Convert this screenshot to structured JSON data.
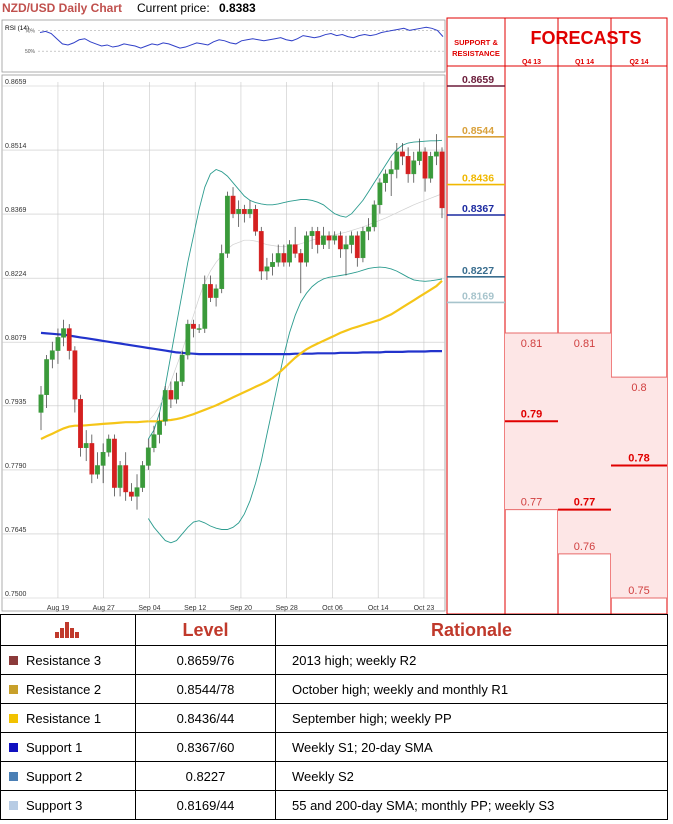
{
  "header": {
    "title": "NZD/USD Daily Chart",
    "price_label": "Current price:",
    "price_value": "0.8383"
  },
  "colors": {
    "bull": "#3a9a3a",
    "bear": "#d42020",
    "sma20": "#2c9c8f",
    "sma55": "#f5c518",
    "sma200": "#2233cc",
    "forecast_red": "#e00000",
    "forecast_fill": "#fde6e6",
    "table_header": "#c0392b"
  },
  "chart_data": [
    {
      "type": "line",
      "title": "RSI (14)",
      "yticks": [
        "70%",
        "50%"
      ],
      "ylim": [
        30,
        80
      ],
      "values": [
        68,
        69,
        67,
        62,
        57,
        56,
        58,
        61,
        62,
        59,
        57,
        55,
        56,
        54,
        55,
        57,
        56,
        55,
        53,
        55,
        57,
        56,
        58,
        57,
        55,
        53,
        54,
        56,
        58,
        57,
        56,
        59,
        61,
        60,
        58,
        57,
        60,
        61,
        62,
        61,
        60,
        61,
        62,
        63,
        61,
        60,
        62,
        65,
        64,
        63,
        64,
        66,
        67,
        65,
        66,
        64,
        63,
        65,
        66,
        65,
        66,
        68,
        69,
        70,
        71,
        72,
        70,
        71,
        72,
        73,
        72,
        70,
        64
      ]
    },
    {
      "type": "candlestick",
      "title": "NZD/USD Daily Chart",
      "ylim": [
        0.75,
        0.8659
      ],
      "yticks": [
        "0.8659",
        "0.8514",
        "0.8369",
        "0.8224",
        "0.8079",
        "0.7935",
        "0.7790",
        "0.7645",
        "0.7500"
      ],
      "xticks": [
        "Aug 19",
        "Aug 27",
        "Sep 04",
        "Sep 12",
        "Sep 20",
        "Sep 28",
        "Oct 06",
        "Oct 14",
        "Oct 23"
      ],
      "candles": [
        [
          0.792,
          0.798,
          0.788,
          0.796
        ],
        [
          0.796,
          0.805,
          0.793,
          0.804
        ],
        [
          0.804,
          0.808,
          0.802,
          0.806
        ],
        [
          0.806,
          0.811,
          0.803,
          0.809
        ],
        [
          0.809,
          0.813,
          0.807,
          0.811
        ],
        [
          0.811,
          0.812,
          0.804,
          0.806
        ],
        [
          0.806,
          0.807,
          0.792,
          0.795
        ],
        [
          0.795,
          0.796,
          0.782,
          0.784
        ],
        [
          0.784,
          0.788,
          0.781,
          0.785
        ],
        [
          0.785,
          0.787,
          0.776,
          0.778
        ],
        [
          0.778,
          0.783,
          0.777,
          0.78
        ],
        [
          0.78,
          0.785,
          0.776,
          0.783
        ],
        [
          0.783,
          0.787,
          0.782,
          0.786
        ],
        [
          0.786,
          0.787,
          0.773,
          0.775
        ],
        [
          0.775,
          0.781,
          0.773,
          0.78
        ],
        [
          0.78,
          0.783,
          0.772,
          0.774
        ],
        [
          0.774,
          0.776,
          0.772,
          0.773
        ],
        [
          0.773,
          0.778,
          0.77,
          0.775
        ],
        [
          0.775,
          0.781,
          0.774,
          0.78
        ],
        [
          0.78,
          0.786,
          0.779,
          0.784
        ],
        [
          0.784,
          0.789,
          0.783,
          0.787
        ],
        [
          0.787,
          0.792,
          0.785,
          0.79
        ],
        [
          0.79,
          0.798,
          0.789,
          0.797
        ],
        [
          0.797,
          0.799,
          0.793,
          0.795
        ],
        [
          0.795,
          0.801,
          0.794,
          0.799
        ],
        [
          0.799,
          0.806,
          0.798,
          0.805
        ],
        [
          0.805,
          0.813,
          0.804,
          0.812
        ],
        [
          0.812,
          0.813,
          0.809,
          0.811
        ],
        [
          0.811,
          0.812,
          0.81,
          0.811
        ],
        [
          0.811,
          0.823,
          0.81,
          0.821
        ],
        [
          0.821,
          0.823,
          0.817,
          0.818
        ],
        [
          0.818,
          0.821,
          0.816,
          0.82
        ],
        [
          0.82,
          0.83,
          0.819,
          0.828
        ],
        [
          0.828,
          0.842,
          0.827,
          0.841
        ],
        [
          0.841,
          0.843,
          0.836,
          0.837
        ],
        [
          0.837,
          0.84,
          0.834,
          0.838
        ],
        [
          0.838,
          0.839,
          0.835,
          0.837
        ],
        [
          0.837,
          0.84,
          0.836,
          0.838
        ],
        [
          0.838,
          0.839,
          0.832,
          0.833
        ],
        [
          0.833,
          0.834,
          0.822,
          0.824
        ],
        [
          0.824,
          0.827,
          0.822,
          0.825
        ],
        [
          0.825,
          0.828,
          0.823,
          0.826
        ],
        [
          0.826,
          0.83,
          0.825,
          0.828
        ],
        [
          0.828,
          0.83,
          0.825,
          0.826
        ],
        [
          0.826,
          0.831,
          0.825,
          0.83
        ],
        [
          0.83,
          0.834,
          0.827,
          0.828
        ],
        [
          0.828,
          0.829,
          0.819,
          0.826
        ],
        [
          0.826,
          0.833,
          0.825,
          0.832
        ],
        [
          0.832,
          0.834,
          0.829,
          0.833
        ],
        [
          0.833,
          0.834,
          0.828,
          0.83
        ],
        [
          0.83,
          0.834,
          0.829,
          0.832
        ],
        [
          0.832,
          0.833,
          0.829,
          0.831
        ],
        [
          0.831,
          0.833,
          0.83,
          0.832
        ],
        [
          0.832,
          0.833,
          0.827,
          0.829
        ],
        [
          0.829,
          0.832,
          0.823,
          0.83
        ],
        [
          0.83,
          0.833,
          0.828,
          0.832
        ],
        [
          0.832,
          0.833,
          0.825,
          0.827
        ],
        [
          0.827,
          0.834,
          0.826,
          0.833
        ],
        [
          0.833,
          0.836,
          0.831,
          0.834
        ],
        [
          0.834,
          0.84,
          0.833,
          0.839
        ],
        [
          0.839,
          0.845,
          0.837,
          0.844
        ],
        [
          0.844,
          0.847,
          0.842,
          0.846
        ],
        [
          0.846,
          0.849,
          0.841,
          0.847
        ],
        [
          0.847,
          0.853,
          0.845,
          0.851
        ],
        [
          0.851,
          0.853,
          0.848,
          0.85
        ],
        [
          0.85,
          0.852,
          0.844,
          0.846
        ],
        [
          0.846,
          0.851,
          0.844,
          0.849
        ],
        [
          0.849,
          0.854,
          0.848,
          0.851
        ],
        [
          0.851,
          0.852,
          0.842,
          0.845
        ],
        [
          0.845,
          0.851,
          0.844,
          0.85
        ],
        [
          0.85,
          0.855,
          0.848,
          0.851
        ],
        [
          0.851,
          0.852,
          0.836,
          0.8383
        ]
      ],
      "series": [
        {
          "name": "",
          "color_key": "sma200",
          "values": [
            0.81,
            0.8099,
            0.8098,
            0.8097,
            0.8096,
            0.8094,
            0.8092,
            0.809,
            0.8088,
            0.8086,
            0.8084,
            0.8082,
            0.808,
            0.8078,
            0.8076,
            0.8074,
            0.8072,
            0.807,
            0.8068,
            0.8066,
            0.8064,
            0.8062,
            0.806,
            0.8058,
            0.8056,
            0.8055,
            0.8054,
            0.8053,
            0.8052,
            0.8052,
            0.8052,
            0.8052,
            0.8052,
            0.8052,
            0.8052,
            0.8052,
            0.8052,
            0.8052,
            0.8052,
            0.8052,
            0.8052,
            0.8052,
            0.8052,
            0.8052,
            0.8052,
            0.8053,
            0.8053,
            0.8053,
            0.8053,
            0.8054,
            0.8054,
            0.8054,
            0.8054,
            0.8055,
            0.8055,
            0.8055,
            0.8055,
            0.8056,
            0.8056,
            0.8056,
            0.8056,
            0.8057,
            0.8057,
            0.8057,
            0.8057,
            0.8058,
            0.8058,
            0.8058,
            0.8058,
            0.8059,
            0.8059,
            0.8059
          ]
        },
        {
          "name": "",
          "color_key": "sma55",
          "values": [
            0.786,
            0.7866,
            0.7872,
            0.7878,
            0.7884,
            0.7888,
            0.789,
            0.789,
            0.7891,
            0.7892,
            0.7893,
            0.7894,
            0.7895,
            0.7896,
            0.7897,
            0.7898,
            0.7898,
            0.7898,
            0.7899,
            0.79,
            0.79,
            0.79,
            0.7902,
            0.7903,
            0.7905,
            0.7908,
            0.7912,
            0.7916,
            0.7921,
            0.7926,
            0.7931,
            0.7936,
            0.7942,
            0.7948,
            0.7954,
            0.796,
            0.7966,
            0.7972,
            0.7978,
            0.7984,
            0.799,
            0.7998,
            0.8008,
            0.802,
            0.8032,
            0.8044,
            0.8054,
            0.8063,
            0.807,
            0.8076,
            0.8082,
            0.8088,
            0.8094,
            0.81,
            0.8105,
            0.811,
            0.8114,
            0.8118,
            0.8122,
            0.8126,
            0.813,
            0.8136,
            0.8142,
            0.815,
            0.8158,
            0.8166,
            0.8174,
            0.8182,
            0.819,
            0.8198,
            0.8206,
            0.8218
          ]
        },
        {
          "name": "",
          "color_key": "sma20",
          "values": [
            null,
            null,
            null,
            null,
            null,
            null,
            null,
            null,
            null,
            null,
            null,
            null,
            null,
            null,
            null,
            null,
            null,
            null,
            null,
            0.79,
            0.7915,
            0.7935,
            0.796,
            0.799,
            0.8025,
            0.806,
            0.81,
            0.814,
            0.818,
            0.8215,
            0.824,
            0.826,
            0.8275,
            0.829,
            0.83,
            0.8305,
            0.831,
            0.831,
            0.8308,
            0.8304,
            0.83,
            0.8298,
            0.8296,
            0.8295,
            0.8296,
            0.8298,
            0.8302,
            0.8306,
            0.831,
            0.8314,
            0.8318,
            0.832,
            0.8322,
            0.8325,
            0.8328,
            0.8332,
            0.8336,
            0.834,
            0.8345,
            0.835,
            0.8355,
            0.836,
            0.8366,
            0.8372,
            0.8378,
            0.8384,
            0.839,
            0.8395,
            0.84,
            0.8405,
            0.841,
            0.8415
          ]
        }
      ],
      "bollinger_upper": [
        null,
        null,
        null,
        null,
        null,
        null,
        null,
        null,
        null,
        null,
        null,
        null,
        null,
        null,
        null,
        null,
        null,
        null,
        null,
        0.786,
        0.788,
        0.792,
        0.798,
        0.805,
        0.812,
        0.819,
        0.826,
        0.832,
        0.838,
        0.843,
        0.846,
        0.847,
        0.8465,
        0.8455,
        0.844,
        0.8425,
        0.841,
        0.84,
        0.8395,
        0.8392,
        0.839,
        0.839,
        0.8392,
        0.8395,
        0.8398,
        0.84,
        0.8402,
        0.8402,
        0.84,
        0.8396,
        0.839,
        0.838,
        0.837,
        0.8365,
        0.8362,
        0.837,
        0.8385,
        0.84,
        0.842,
        0.844,
        0.846,
        0.848,
        0.85,
        0.8515,
        0.8525,
        0.853,
        0.8532,
        0.8533,
        0.8534,
        0.8535,
        0.8535,
        0.8536
      ],
      "bollinger_lower": [
        null,
        null,
        null,
        null,
        null,
        null,
        null,
        null,
        null,
        null,
        null,
        null,
        null,
        null,
        null,
        null,
        null,
        null,
        null,
        0.768,
        0.766,
        0.7645,
        0.763,
        0.7625,
        0.763,
        0.7645,
        0.766,
        0.7672,
        0.7675,
        0.767,
        0.7663,
        0.7658,
        0.7655,
        0.7655,
        0.766,
        0.767,
        0.769,
        0.772,
        0.776,
        0.781,
        0.787,
        0.793,
        0.799,
        0.805,
        0.81,
        0.814,
        0.817,
        0.819,
        0.8205,
        0.8215,
        0.8222,
        0.8226,
        0.8228,
        0.823,
        0.8232,
        0.8235,
        0.8238,
        0.8242,
        0.8246,
        0.8248,
        0.8249,
        0.8248,
        0.8245,
        0.824,
        0.8233,
        0.8226,
        0.822,
        0.8218,
        0.8217,
        0.8218,
        0.822,
        0.8222
      ]
    },
    {
      "type": "bar",
      "title": "FORECASTS",
      "left_header": "SUPPORT & RESISTANCE",
      "levels": [
        {
          "label": "0.8659",
          "value": 0.8659,
          "color": "#6b1c3a"
        },
        {
          "label": "0.8544",
          "value": 0.8544,
          "color": "#d9a13b"
        },
        {
          "label": "0.8436",
          "value": 0.8436,
          "color": "#f0b800"
        },
        {
          "label": "0.8367",
          "value": 0.8367,
          "color": "#1c2aa0"
        },
        {
          "label": "0.8227",
          "value": 0.8227,
          "color": "#3a6e8f"
        },
        {
          "label": "0.8169",
          "value": 0.8169,
          "color": "#a7c4cc"
        }
      ],
      "categories": [
        "Q4 13",
        "Q1 14",
        "Q2 14"
      ],
      "forecasts": [
        {
          "high": 0.81,
          "mid": 0.79,
          "low": 0.77,
          "high_label": "0.81",
          "mid_label": "0.79",
          "low_label": "0.77",
          "mid_bold": true,
          "low_bold": false
        },
        {
          "high": 0.81,
          "mid": 0.77,
          "low": 0.76,
          "high_label": "0.81",
          "mid_label": "0.77",
          "low_label": "0.76",
          "mid_bold": true,
          "low_bold": false
        },
        {
          "high": 0.8,
          "mid": 0.78,
          "low": 0.75,
          "high_label": "0.8",
          "mid_label": "0.78",
          "low_label": "0.75",
          "mid_bold": true,
          "low_bold": false
        }
      ]
    }
  ],
  "table": {
    "headers": {
      "level": "Level",
      "rationale": "Rationale"
    },
    "rows": [
      {
        "name": "Resistance 3",
        "level": "0.8659/76",
        "rationale": "2013 high; weekly R2",
        "color": "#8b3a3a"
      },
      {
        "name": "Resistance 2",
        "level": "0.8544/78",
        "rationale": "October high; weekly and monthly R1",
        "color": "#c8a02a"
      },
      {
        "name": "Resistance 1",
        "level": "0.8436/44",
        "rationale": "September high; weekly PP",
        "color": "#f2c200"
      },
      {
        "name": "Support 1",
        "level": "0.8367/60",
        "rationale": "Weekly S1; 20-day SMA",
        "color": "#1010c0"
      },
      {
        "name": "Support 2",
        "level": "0.8227",
        "rationale": "Weekly S2",
        "color": "#4a7fb5"
      },
      {
        "name": "Support 3",
        "level": "0.8169/44",
        "rationale": "55 and 200-day SMA; monthly PP; weekly S3",
        "color": "#b8cce4"
      }
    ]
  }
}
